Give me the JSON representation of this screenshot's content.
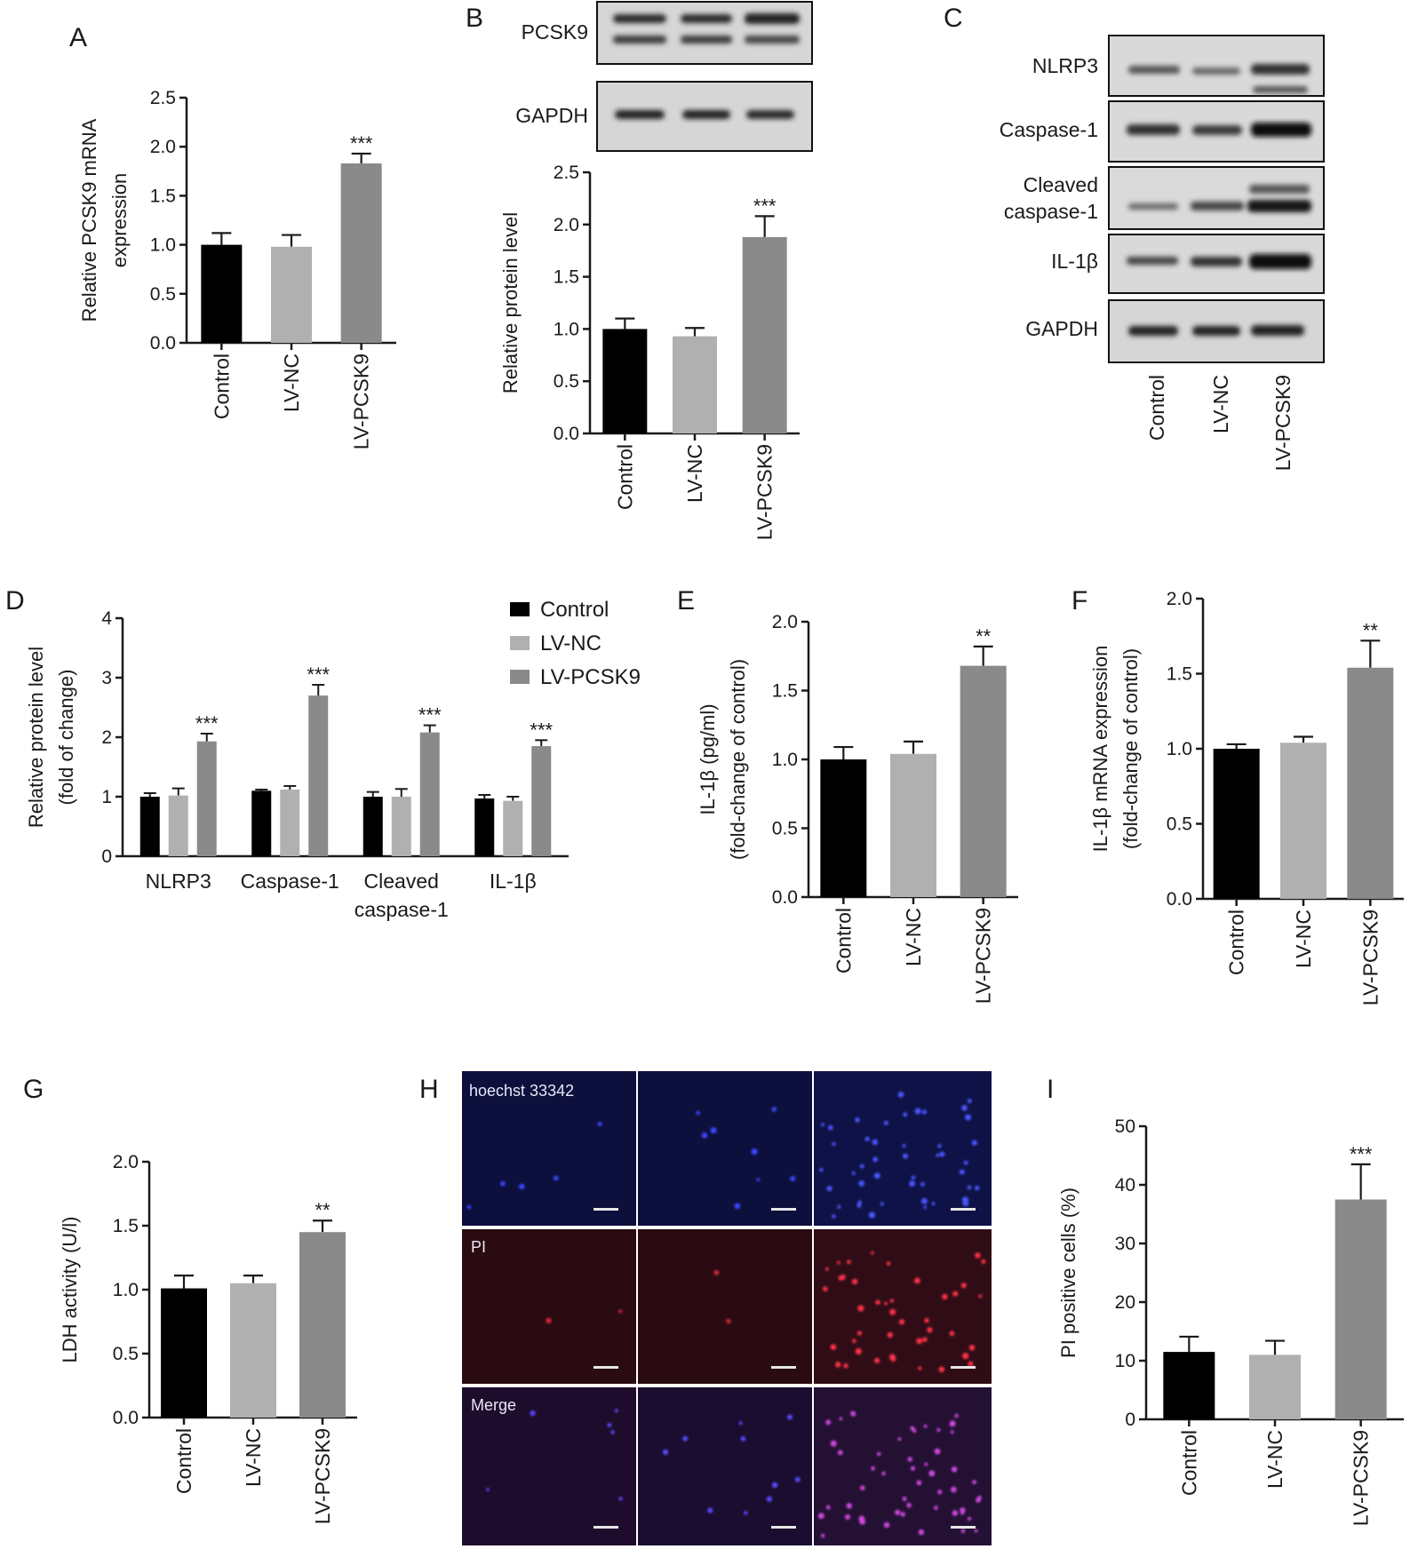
{
  "colors": {
    "control": "#000000",
    "lv_nc": "#b0b0b0",
    "lv_pcsk9": "#8a8a8a",
    "axis": "#1a1a1a",
    "hoechst_bg": "#0d0f3c",
    "pi_bg": "#2a0b12",
    "merge_bg": "#1e0c2c"
  },
  "groups": [
    "Control",
    "LV-NC",
    "LV-PCSK9"
  ],
  "panels": {
    "A": {
      "label": "A"
    },
    "B": {
      "label": "B",
      "blot_labels": [
        "PCSK9",
        "GAPDH"
      ]
    },
    "C": {
      "label": "C",
      "blot_labels": [
        "NLRP3",
        "Caspase-1",
        "Cleaved caspase-1",
        "IL-1β",
        "GAPDH"
      ],
      "lanes": [
        "Control",
        "LV-NC",
        "LV-PCSK9"
      ]
    },
    "D": {
      "label": "D",
      "legend": [
        "Control",
        "LV-NC",
        "LV-PCSK9"
      ]
    },
    "E": {
      "label": "E"
    },
    "F": {
      "label": "F"
    },
    "G": {
      "label": "G"
    },
    "H": {
      "label": "H",
      "row_labels": [
        "hoechst 33342",
        "PI",
        "Merge"
      ]
    },
    "I": {
      "label": "I"
    }
  },
  "chart_data": [
    {
      "panel": "A",
      "type": "bar",
      "categories": [
        "Control",
        "LV-NC",
        "LV-PCSK9"
      ],
      "values": [
        1.0,
        0.98,
        1.83
      ],
      "errors": [
        0.12,
        0.12,
        0.1
      ],
      "significance": [
        "",
        "",
        "***"
      ],
      "ylabel": [
        "Relative PCSK9 mRNA",
        "expression"
      ],
      "ylim": [
        0,
        2.5
      ],
      "yticks": [
        "0.0",
        "0.5",
        "1.0",
        "1.5",
        "2.0",
        "2.5"
      ]
    },
    {
      "panel": "B",
      "type": "bar",
      "categories": [
        "Control",
        "LV-NC",
        "LV-PCSK9"
      ],
      "values": [
        1.0,
        0.93,
        1.88
      ],
      "errors": [
        0.1,
        0.08,
        0.2
      ],
      "significance": [
        "",
        "",
        "***"
      ],
      "ylabel": [
        "Relative protein level"
      ],
      "ylim": [
        0,
        2.5
      ],
      "yticks": [
        "0.0",
        "0.5",
        "1.0",
        "1.5",
        "2.0",
        "2.5"
      ]
    },
    {
      "panel": "D",
      "type": "bar",
      "categories": [
        "NLRP3",
        "Caspase-1",
        "Cleaved caspase-1",
        "IL-1β"
      ],
      "series": [
        {
          "name": "Control",
          "values": [
            1.0,
            1.1,
            1.0,
            0.97
          ],
          "errors": [
            0.06,
            0.02,
            0.08,
            0.06
          ]
        },
        {
          "name": "LV-NC",
          "values": [
            1.02,
            1.12,
            1.0,
            0.93
          ],
          "errors": [
            0.12,
            0.06,
            0.13,
            0.07
          ]
        },
        {
          "name": "LV-PCSK9",
          "values": [
            1.93,
            2.7,
            2.08,
            1.85
          ],
          "errors": [
            0.13,
            0.18,
            0.12,
            0.1
          ]
        }
      ],
      "significance": [
        "***",
        "***",
        "***",
        "***"
      ],
      "ylabel": [
        "Relative protein level",
        "(fold of change)"
      ],
      "ylim": [
        0,
        4
      ],
      "yticks": [
        "0",
        "1",
        "2",
        "3",
        "4"
      ]
    },
    {
      "panel": "E",
      "type": "bar",
      "categories": [
        "Control",
        "LV-NC",
        "LV-PCSK9"
      ],
      "values": [
        1.0,
        1.04,
        1.68
      ],
      "errors": [
        0.09,
        0.09,
        0.14
      ],
      "significance": [
        "",
        "",
        "**"
      ],
      "ylabel": [
        "IL-1β (pg/ml)",
        "(fold-change of control)"
      ],
      "ylim": [
        0,
        2.0
      ],
      "yticks": [
        "0.0",
        "0.5",
        "1.0",
        "1.5",
        "2.0"
      ]
    },
    {
      "panel": "F",
      "type": "bar",
      "categories": [
        "Control",
        "LV-NC",
        "LV-PCSK9"
      ],
      "values": [
        1.0,
        1.04,
        1.54
      ],
      "errors": [
        0.03,
        0.04,
        0.18
      ],
      "significance": [
        "",
        "",
        "**"
      ],
      "ylabel": [
        "IL-1β mRNA expression",
        "(fold-change of control)"
      ],
      "ylim": [
        0,
        2.0
      ],
      "yticks": [
        "0.0",
        "0.5",
        "1.0",
        "1.5",
        "2.0"
      ]
    },
    {
      "panel": "G",
      "type": "bar",
      "categories": [
        "Control",
        "LV-NC",
        "LV-PCSK9"
      ],
      "values": [
        1.01,
        1.05,
        1.45
      ],
      "errors": [
        0.1,
        0.06,
        0.09
      ],
      "significance": [
        "",
        "",
        "**"
      ],
      "ylabel": [
        "LDH activity (U/l)"
      ],
      "ylim": [
        0,
        2.0
      ],
      "yticks": [
        "0.0",
        "0.5",
        "1.0",
        "1.5",
        "2.0"
      ]
    },
    {
      "panel": "I",
      "type": "bar",
      "categories": [
        "Control",
        "LV-NC",
        "LV-PCSK9"
      ],
      "values": [
        11.5,
        11.0,
        37.5
      ],
      "errors": [
        2.6,
        2.4,
        6.0
      ],
      "significance": [
        "",
        "",
        "***"
      ],
      "ylabel": [
        "PI positive cells (%)"
      ],
      "ylim": [
        0,
        50
      ],
      "yticks": [
        "0",
        "10",
        "20",
        "30",
        "40",
        "50"
      ]
    }
  ]
}
